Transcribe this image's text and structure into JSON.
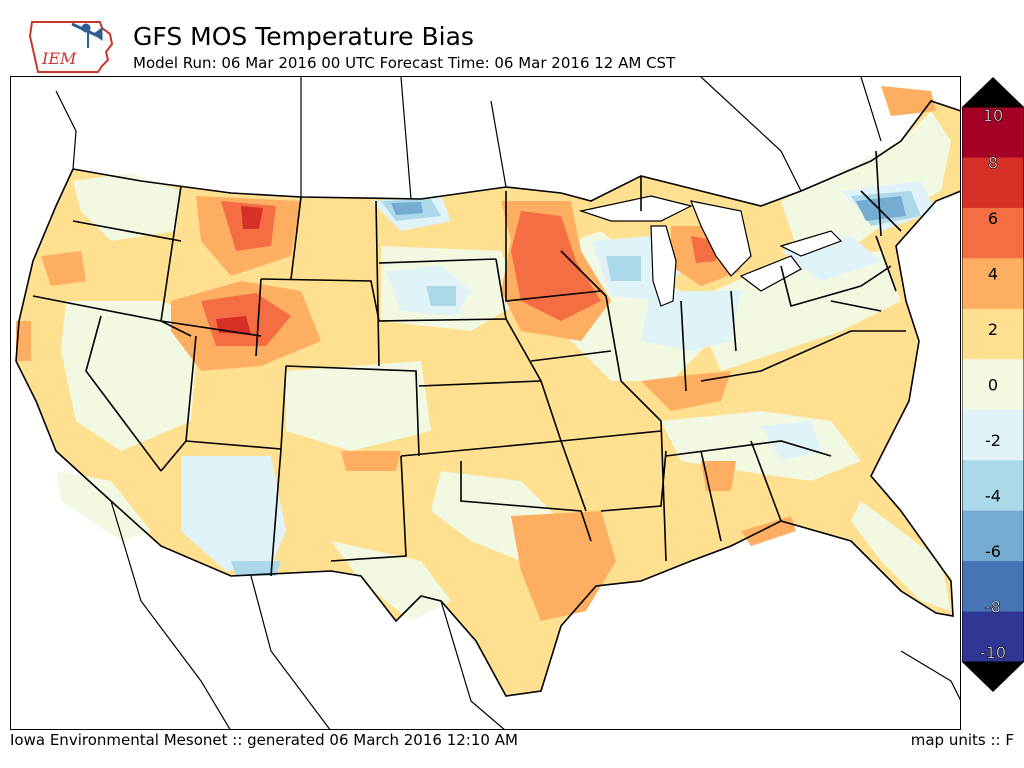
{
  "header": {
    "title": "GFS MOS Temperature Bias",
    "subtitle": "Model Run: 06 Mar 2016 00 UTC Forecast Time: 06 Mar 2016 12 AM CST",
    "logo_text": "IEM"
  },
  "legend": {
    "tick_labels": [
      "10",
      "8",
      "6",
      "4",
      "2",
      "0",
      "-2",
      "-4",
      "-6",
      "-8",
      "-10"
    ],
    "colors": [
      "#a50026",
      "#d73027",
      "#f46d43",
      "#fdae61",
      "#fee090",
      "#f2f9e2",
      "#e0f3f8",
      "#abd9e9",
      "#74add1",
      "#4575b4",
      "#313695"
    ],
    "over_color": "#000000",
    "under_color": "#000000"
  },
  "footer": {
    "left": "Iowa Environmental Mesonet :: generated 06 March 2016 12:10 AM",
    "right": "map units :: F"
  }
}
